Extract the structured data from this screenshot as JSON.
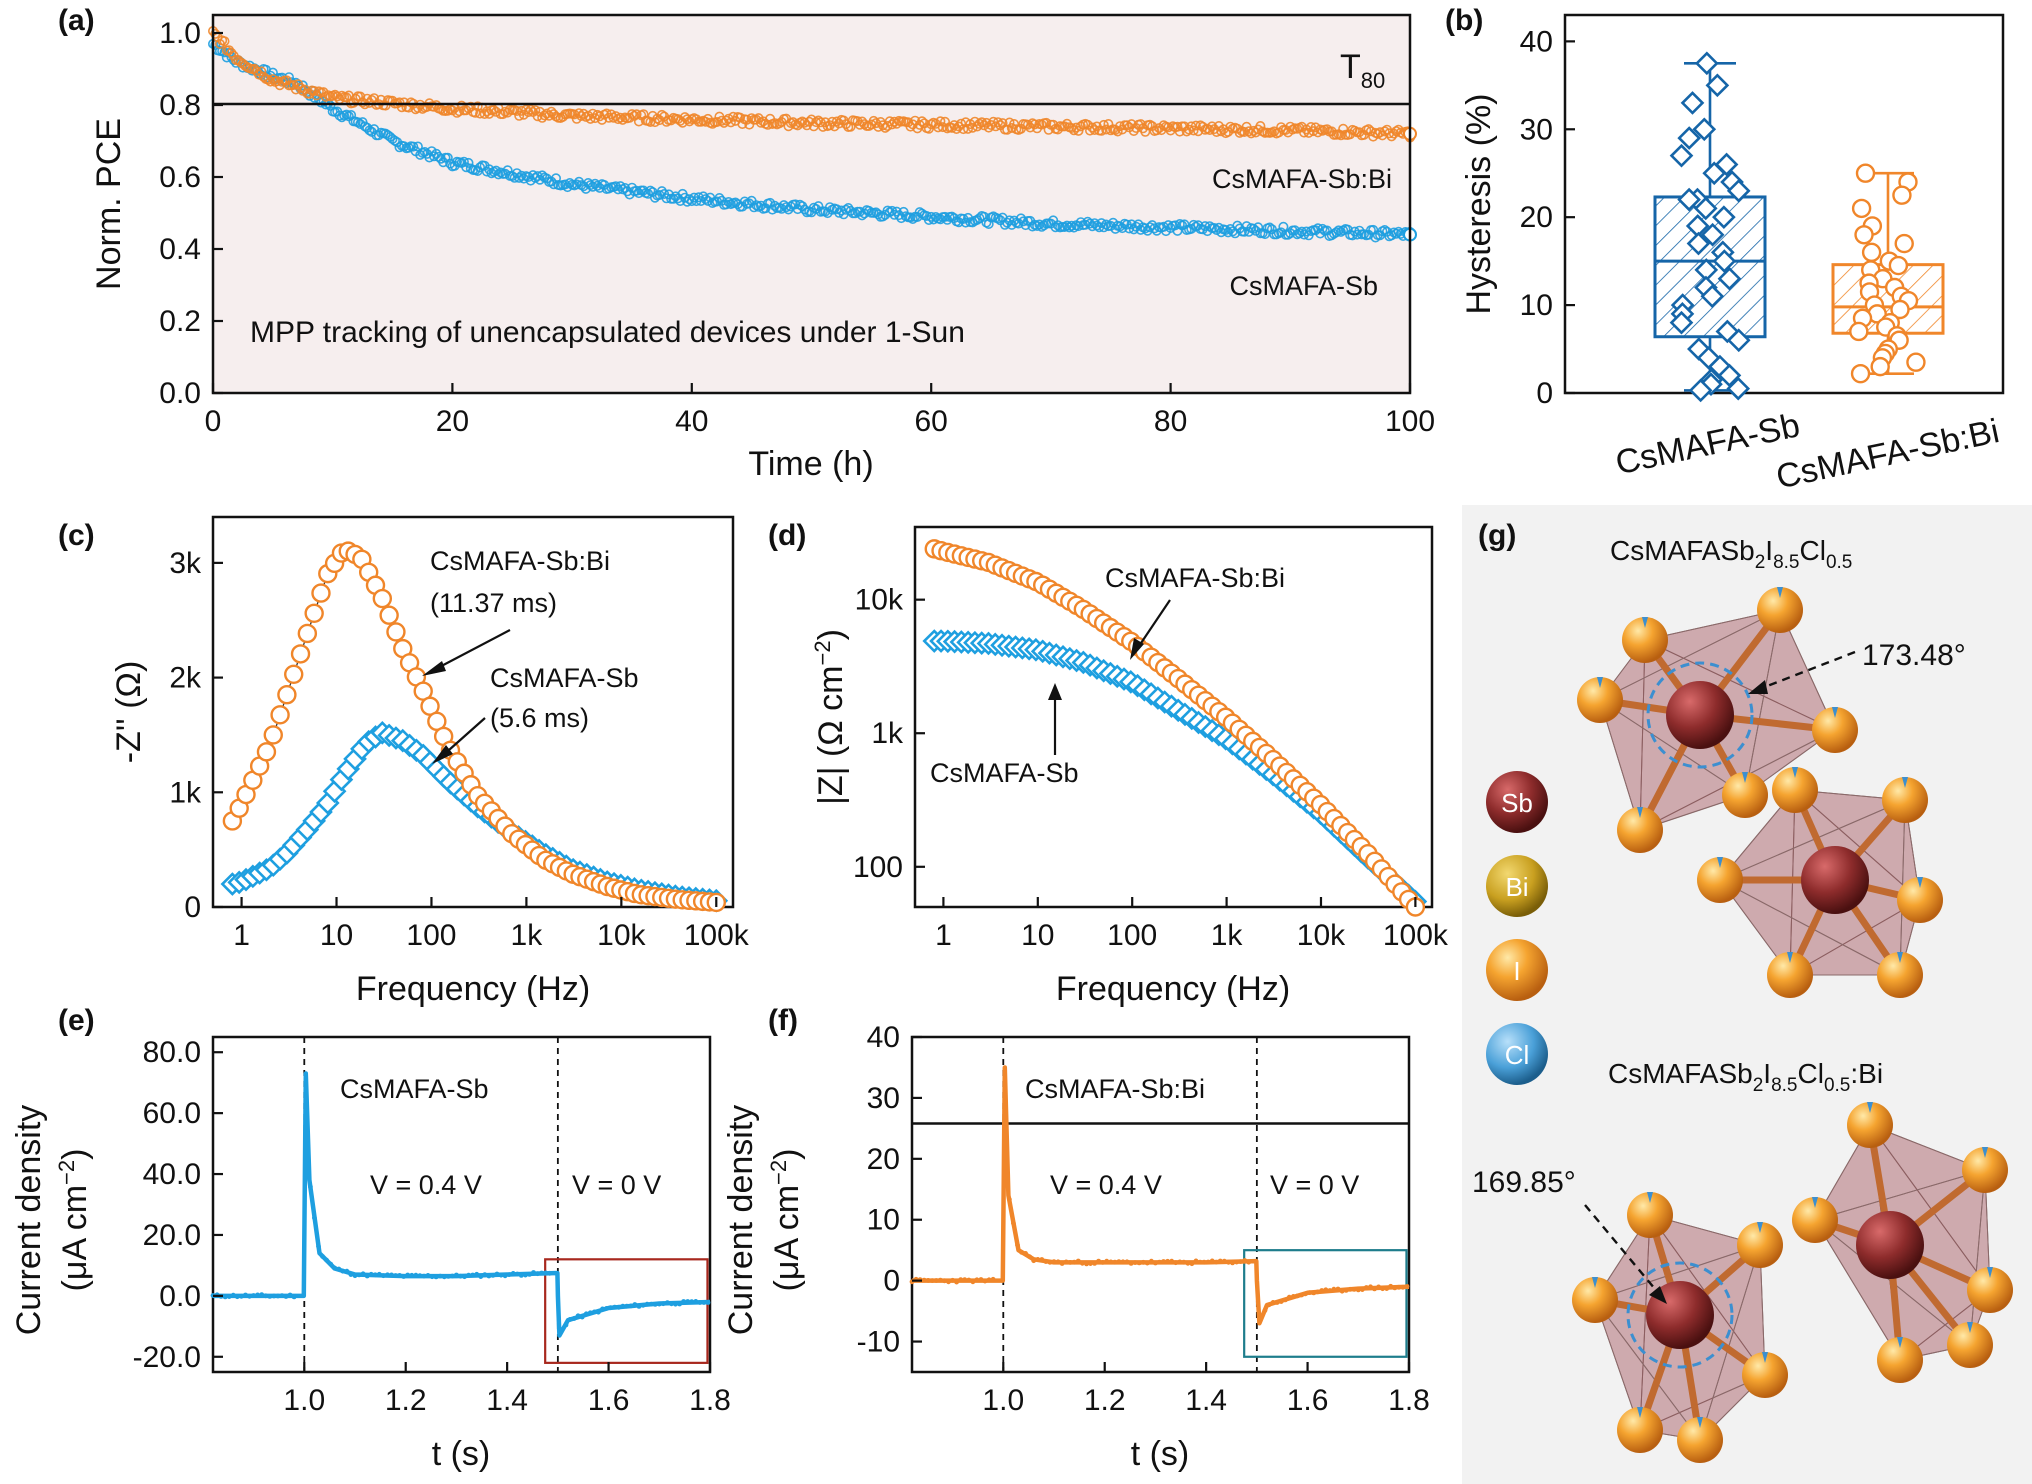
{
  "colors": {
    "sb": "#1e9fe0",
    "sbbi": "#f0862a",
    "sb_box": "#1565a8",
    "box_red": "#a8281e",
    "box_teal": "#1e7d8c"
  },
  "panel_a": {
    "label": "(a)",
    "xlabel": "Time (h)",
    "ylabel": "Norm. PCE",
    "xticks": [
      "0",
      "20",
      "40",
      "60",
      "80",
      "100"
    ],
    "yticks": [
      "0.0",
      "0.2",
      "0.4",
      "0.6",
      "0.8",
      "1.0"
    ],
    "t80_main": "T",
    "t80_sub": "80",
    "series_label_sbbi": "CsMAFA-Sb:Bi",
    "series_label_sb": "CsMAFA-Sb",
    "note": "MPP tracking of unencapsulated devices under 1-Sun"
  },
  "panel_b": {
    "label": "(b)",
    "ylabel": "Hysteresis (%)",
    "yticks": [
      "0",
      "10",
      "20",
      "30",
      "40"
    ],
    "categories": [
      "CsMAFA-Sb",
      "CsMAFA-Sb:Bi"
    ]
  },
  "panel_c": {
    "label": "(c)",
    "xlabel": "Frequency (Hz)",
    "ylabel": "-Z'' (Ω)",
    "xticks": [
      "1",
      "10",
      "100",
      "1k",
      "10k",
      "100k"
    ],
    "yticks": [
      "0",
      "1k",
      "2k",
      "3k"
    ],
    "ann_sbbi_1": "CsMAFA-Sb:Bi",
    "ann_sbbi_2": "(11.37 ms)",
    "ann_sb_1": "CsMAFA-Sb",
    "ann_sb_2": "(5.6 ms)"
  },
  "panel_d": {
    "label": "(d)",
    "xlabel": "Frequency (Hz)",
    "ylabel_main": "|Z| (Ω cm",
    "ylabel_sup": "−2",
    "ylabel_end": ")",
    "xticks": [
      "1",
      "10",
      "100",
      "1k",
      "10k",
      "100k"
    ],
    "yticks": [
      "100",
      "1k",
      "10k"
    ],
    "ann_sbbi": "CsMAFA-Sb:Bi",
    "ann_sb": "CsMAFA-Sb"
  },
  "panel_e": {
    "label": "(e)",
    "xlabel": "t (s)",
    "ylabel_1": "Current density",
    "ylabel_2": "(μA cm",
    "ylabel_sup": "−2",
    "ylabel_end": ")",
    "xticks": [
      "1.0",
      "1.2",
      "1.4",
      "1.6",
      "1.8"
    ],
    "yticks": [
      "-20.0",
      "0.0",
      "20.0",
      "40.0",
      "60.0",
      "80.0"
    ],
    "title": "CsMAFA-Sb",
    "v1": "V = 0.4 V",
    "v2": "V = 0 V"
  },
  "panel_f": {
    "label": "(f)",
    "xlabel": "t (s)",
    "ylabel_1": "Current density",
    "ylabel_2": "(μA cm",
    "ylabel_sup": "−2",
    "ylabel_end": ")",
    "xticks": [
      "1.0",
      "1.2",
      "1.4",
      "1.6",
      "1.8"
    ],
    "yticks": [
      "-10",
      "0",
      "10",
      "20",
      "30",
      "40"
    ],
    "title": "CsMAFA-Sb:Bi",
    "v1": "V = 0.4 V",
    "v2": "V = 0 V"
  },
  "panel_g": {
    "label": "(g)",
    "title1_a": "CsMAFASb",
    "title1_s1": "2",
    "title1_b": "I",
    "title1_s2": "8.5",
    "title1_c": "Cl",
    "title1_s3": "0.5",
    "title2_a": "CsMAFASb",
    "title2_s1": "2",
    "title2_b": "I",
    "title2_s2": "8.5",
    "title2_c": "Cl",
    "title2_s3": "0.5",
    "title2_d": ":Bi",
    "angle1": "173.48°",
    "angle2": "169.85°",
    "legend": [
      {
        "label": "Sb",
        "color": "#8e2c2c"
      },
      {
        "label": "Bi",
        "color": "#c9a020"
      },
      {
        "label": "I",
        "color": "#f09a2c"
      },
      {
        "label": "Cl",
        "color": "#4aa0d8"
      }
    ]
  },
  "chart_data": [
    {
      "panel": "a",
      "type": "scatter",
      "xlabel": "Time (h)",
      "ylabel": "Norm. PCE",
      "xlim": [
        0,
        100
      ],
      "ylim": [
        0,
        1.05
      ],
      "hline": 0.8,
      "series": [
        {
          "name": "CsMAFA-Sb:Bi",
          "x": [
            0,
            2,
            5,
            10,
            20,
            30,
            40,
            50,
            60,
            70,
            80,
            90,
            100
          ],
          "y": [
            1.0,
            0.93,
            0.87,
            0.82,
            0.79,
            0.77,
            0.76,
            0.75,
            0.745,
            0.74,
            0.735,
            0.73,
            0.72
          ]
        },
        {
          "name": "CsMAFA-Sb",
          "x": [
            0,
            2,
            5,
            7,
            10,
            15,
            20,
            30,
            40,
            50,
            60,
            70,
            80,
            90,
            100
          ],
          "y": [
            0.97,
            0.92,
            0.88,
            0.86,
            0.79,
            0.7,
            0.64,
            0.58,
            0.54,
            0.51,
            0.49,
            0.47,
            0.46,
            0.45,
            0.44
          ]
        }
      ]
    },
    {
      "panel": "b",
      "type": "box",
      "ylabel": "Hysteresis (%)",
      "ylim": [
        0,
        43
      ],
      "categories": [
        "CsMAFA-Sb",
        "CsMAFA-Sb:Bi"
      ],
      "series": [
        {
          "name": "CsMAFA-Sb",
          "min": 0.3,
          "q1": 6.4,
          "median": 15,
          "q3": 22.3,
          "max": 37.5,
          "points": [
            37.5,
            35,
            33,
            30,
            29,
            27,
            26,
            25,
            24,
            23,
            22,
            22,
            21,
            20,
            19,
            18,
            17,
            16,
            15,
            14,
            13,
            12,
            11,
            10,
            9,
            8,
            7,
            6,
            5,
            4,
            3,
            2,
            1.5,
            1,
            0.5,
            0.3
          ]
        },
        {
          "name": "CsMAFA-Sb:Bi",
          "min": 2.2,
          "q1": 6.8,
          "median": 9.8,
          "q3": 14.6,
          "max": 25,
          "points": [
            25,
            24,
            22.5,
            21,
            19,
            18,
            17,
            16,
            15,
            14.5,
            14,
            13,
            12.5,
            12,
            11.5,
            11,
            10.5,
            10,
            9.5,
            9,
            8.5,
            8,
            7.5,
            7,
            6.5,
            6,
            5,
            4.5,
            4,
            3.5,
            3,
            2.2
          ]
        }
      ]
    },
    {
      "panel": "c",
      "type": "scatter",
      "xscale": "log",
      "xlabel": "Frequency (Hz)",
      "ylabel": "-Z'' (Ω)",
      "xlim": [
        0.5,
        150000
      ],
      "ylim": [
        0,
        3400
      ],
      "series": [
        {
          "name": "CsMAFA-Sb:Bi",
          "x": [
            0.8,
            1,
            2,
            3,
            5,
            8,
            12,
            18,
            30,
            50,
            80,
            150,
            300,
            700,
            1500,
            3000,
            7000,
            15000,
            40000,
            100000
          ],
          "y": [
            750,
            900,
            1420,
            1850,
            2400,
            2900,
            3120,
            3050,
            2700,
            2250,
            1900,
            1400,
            980,
            640,
            420,
            290,
            180,
            110,
            65,
            40
          ]
        },
        {
          "name": "CsMAFA-Sb",
          "x": [
            0.8,
            1,
            2,
            3,
            5,
            8,
            12,
            20,
            30,
            50,
            80,
            150,
            300,
            700,
            1500,
            3000,
            7000,
            15000,
            40000,
            100000
          ],
          "y": [
            200,
            220,
            340,
            470,
            680,
            900,
            1150,
            1420,
            1520,
            1450,
            1330,
            1100,
            880,
            650,
            470,
            330,
            220,
            150,
            90,
            55
          ]
        }
      ]
    },
    {
      "panel": "d",
      "type": "scatter",
      "xscale": "log",
      "yscale": "log",
      "xlabel": "Frequency (Hz)",
      "ylabel": "|Z| (Ω cm−2)",
      "xlim": [
        0.5,
        150000
      ],
      "ylim": [
        50,
        35000
      ],
      "series": [
        {
          "name": "CsMAFA-Sb:Bi",
          "x": [
            0.8,
            1,
            3,
            10,
            30,
            100,
            300,
            1000,
            3000,
            10000,
            30000,
            100000
          ],
          "y": [
            24000,
            23000,
            19000,
            13500,
            8500,
            4800,
            2600,
            1300,
            650,
            290,
            130,
            50
          ]
        },
        {
          "name": "CsMAFA-Sb",
          "x": [
            0.8,
            1,
            3,
            10,
            30,
            100,
            300,
            1000,
            3000,
            10000,
            30000,
            100000
          ],
          "y": [
            4900,
            4900,
            4700,
            4200,
            3400,
            2400,
            1500,
            900,
            500,
            250,
            120,
            55
          ]
        }
      ]
    },
    {
      "panel": "e",
      "type": "line",
      "xlabel": "t (s)",
      "ylabel": "Current density (μA cm−2)",
      "xlim": [
        0.82,
        1.8
      ],
      "ylim": [
        -25,
        85
      ],
      "series": [
        {
          "name": "CsMAFA-Sb",
          "x": [
            0.82,
            0.99,
            0.999,
            1.003,
            1.01,
            1.03,
            1.06,
            1.1,
            1.2,
            1.3,
            1.4,
            1.499,
            1.5,
            1.503,
            1.52,
            1.6,
            1.7,
            1.8
          ],
          "y": [
            0,
            0,
            0,
            73,
            38,
            14,
            9,
            7,
            6.5,
            6.5,
            7,
            7.5,
            0,
            -13,
            -8,
            -4,
            -2.5,
            -2
          ]
        }
      ]
    },
    {
      "panel": "f",
      "type": "line",
      "xlabel": "t (s)",
      "ylabel": "Current density (μA cm−2)",
      "xlim": [
        0.82,
        1.8
      ],
      "ylim": [
        -15,
        40
      ],
      "hline": 25.8,
      "series": [
        {
          "name": "CsMAFA-Sb:Bi",
          "x": [
            0.82,
            0.99,
            0.999,
            1.003,
            1.01,
            1.03,
            1.06,
            1.1,
            1.2,
            1.3,
            1.4,
            1.499,
            1.5,
            1.505,
            1.52,
            1.6,
            1.7,
            1.8
          ],
          "y": [
            0,
            0,
            0,
            35,
            14,
            5,
            3.5,
            3,
            3,
            3,
            3,
            3.2,
            0,
            -7,
            -4,
            -2,
            -1.3,
            -1
          ]
        }
      ]
    }
  ]
}
